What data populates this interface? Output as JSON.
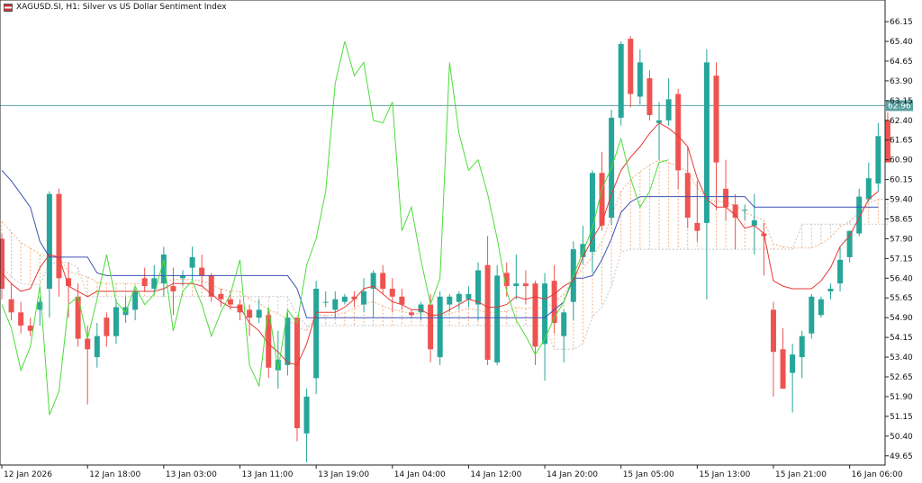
{
  "window": {
    "title": "XAGUSD.SI, H1:  Silver vs US Dollar Sentiment Index"
  },
  "current_price_label": "62.96",
  "colors": {
    "background": "#ffffff",
    "bull_candle": "#26a69a",
    "bear_candle": "#ef5350",
    "tenkan": "#e53935",
    "kijun": "#3f51b5",
    "chikou": "#4cdc3a",
    "cloud_bull": "#f4b183",
    "cloud_bear": "#c8c8c8",
    "current_line": "#5aa0a0",
    "axis_text": "#111111"
  },
  "icons": {
    "title_icon": "flag-icon"
  },
  "chart_data": {
    "type": "candlestick",
    "title": "XAGUSD.SI, H1:  Silver vs US Dollar Sentiment Index",
    "xlabel": "",
    "ylabel": "",
    "ylim": [
      49.3,
      66.7
    ],
    "grid": false,
    "y_ticks": [
      "66.15",
      "65.40",
      "64.65",
      "63.90",
      "63.15",
      "62.40",
      "61.65",
      "60.90",
      "60.15",
      "59.40",
      "58.65",
      "57.90",
      "57.15",
      "56.40",
      "55.65",
      "54.90",
      "54.15",
      "53.40",
      "52.65",
      "51.90",
      "51.15",
      "50.40",
      "49.65"
    ],
    "x_ticks": [
      "12 Jan 2026",
      "12 Jan 18:00",
      "13 Jan 03:00",
      "13 Jan 11:00",
      "13 Jan 19:00",
      "14 Jan 04:00",
      "14 Jan 12:00",
      "14 Jan 20:00",
      "15 Jan 05:00",
      "15 Jan 13:00",
      "15 Jan 21:00",
      "16 Jan 06:00"
    ],
    "x_tick_candle_index": [
      0,
      9,
      17,
      25,
      33,
      41,
      49,
      57,
      65,
      73,
      81,
      89
    ],
    "current_price": 62.96,
    "candles": [
      [
        57.9,
        58.1,
        55.6,
        56.0
      ],
      [
        55.6,
        56.2,
        54.8,
        55.1
      ],
      [
        55.1,
        55.5,
        54.3,
        54.6
      ],
      [
        54.6,
        54.9,
        54.2,
        54.4
      ],
      [
        55.2,
        55.7,
        54.6,
        55.5
      ],
      [
        56.0,
        59.7,
        54.9,
        59.6
      ],
      [
        59.6,
        59.8,
        55.7,
        56.4
      ],
      [
        56.4,
        57.0,
        54.9,
        56.1
      ],
      [
        55.7,
        56.2,
        53.8,
        54.1
      ],
      [
        54.1,
        54.6,
        51.6,
        53.7
      ],
      [
        53.4,
        54.7,
        53.0,
        54.2
      ],
      [
        54.9,
        55.1,
        53.8,
        54.2
      ],
      [
        54.2,
        55.6,
        53.9,
        55.3
      ],
      [
        55.0,
        55.7,
        54.7,
        55.3
      ],
      [
        55.2,
        56.0,
        54.8,
        55.9
      ],
      [
        56.4,
        56.8,
        55.9,
        56.1
      ],
      [
        56.0,
        56.9,
        55.8,
        56.4
      ],
      [
        56.2,
        57.6,
        55.7,
        57.3
      ],
      [
        56.1,
        56.8,
        55.0,
        55.9
      ],
      [
        56.4,
        56.7,
        56.1,
        56.5
      ],
      [
        56.8,
        57.6,
        56.3,
        57.2
      ],
      [
        56.8,
        57.3,
        56.1,
        56.5
      ],
      [
        56.5,
        56.6,
        55.5,
        55.7
      ],
      [
        55.8,
        56.0,
        55.3,
        55.6
      ],
      [
        55.6,
        55.9,
        55.2,
        55.4
      ],
      [
        55.4,
        55.6,
        54.8,
        55.1
      ],
      [
        55.2,
        55.4,
        54.2,
        54.9
      ],
      [
        54.9,
        55.6,
        54.7,
        55.2
      ],
      [
        55.0,
        55.2,
        52.6,
        53.0
      ],
      [
        52.9,
        54.4,
        52.2,
        53.3
      ],
      [
        53.1,
        55.1,
        52.7,
        54.9
      ],
      [
        54.9,
        54.9,
        50.2,
        50.7
      ],
      [
        50.5,
        52.2,
        49.4,
        51.9
      ],
      [
        52.6,
        56.3,
        52.0,
        56.0
      ],
      [
        55.5,
        55.9,
        55.3,
        55.5
      ],
      [
        55.2,
        55.9,
        54.9,
        55.6
      ],
      [
        55.5,
        55.8,
        55.4,
        55.7
      ],
      [
        55.7,
        55.9,
        55.3,
        55.6
      ],
      [
        55.4,
        56.4,
        55.1,
        55.9
      ],
      [
        56.0,
        56.7,
        54.9,
        56.6
      ],
      [
        56.6,
        56.9,
        55.8,
        56.0
      ],
      [
        56.0,
        56.4,
        55.1,
        55.7
      ],
      [
        55.7,
        56.0,
        55.2,
        55.4
      ],
      [
        55.1,
        55.2,
        54.9,
        55.0
      ],
      [
        55.1,
        55.5,
        54.8,
        55.4
      ],
      [
        55.4,
        55.8,
        53.2,
        53.7
      ],
      [
        53.4,
        55.9,
        53.1,
        55.7
      ],
      [
        55.4,
        55.8,
        55.1,
        55.7
      ],
      [
        55.5,
        55.9,
        55.2,
        55.8
      ],
      [
        55.6,
        56.1,
        55.3,
        55.8
      ],
      [
        55.4,
        57.0,
        54.8,
        56.7
      ],
      [
        56.9,
        58.0,
        53.1,
        53.3
      ],
      [
        53.2,
        56.9,
        53.1,
        56.5
      ],
      [
        56.6,
        57.0,
        55.7,
        56.1
      ],
      [
        56.1,
        57.3,
        55.6,
        56.2
      ],
      [
        56.2,
        56.7,
        55.4,
        56.1
      ],
      [
        56.2,
        56.3,
        53.1,
        53.8
      ],
      [
        53.9,
        56.6,
        52.5,
        56.2
      ],
      [
        56.3,
        56.9,
        54.3,
        54.7
      ],
      [
        54.2,
        55.2,
        53.2,
        55.1
      ],
      [
        55.5,
        57.8,
        54.8,
        57.5
      ],
      [
        57.2,
        58.4,
        56.9,
        57.7
      ],
      [
        57.4,
        60.5,
        56.6,
        60.4
      ],
      [
        60.4,
        61.2,
        58.2,
        58.4
      ],
      [
        58.7,
        62.8,
        58.4,
        62.5
      ],
      [
        62.5,
        65.4,
        62.2,
        65.3
      ],
      [
        65.5,
        65.6,
        62.9,
        63.4
      ],
      [
        63.3,
        65.1,
        63.0,
        64.6
      ],
      [
        64.0,
        64.3,
        62.4,
        62.6
      ],
      [
        62.3,
        63.1,
        60.9,
        62.4
      ],
      [
        62.4,
        64.0,
        62.2,
        63.2
      ],
      [
        63.4,
        63.6,
        59.8,
        60.5
      ],
      [
        60.4,
        61.4,
        58.3,
        58.7
      ],
      [
        58.5,
        60.1,
        57.8,
        58.2
      ],
      [
        58.5,
        65.1,
        55.6,
        64.6
      ],
      [
        64.1,
        64.6,
        59.0,
        60.8
      ],
      [
        59.8,
        60.9,
        58.6,
        59.1
      ],
      [
        59.2,
        59.6,
        57.5,
        58.7
      ],
      [
        59.0,
        59.2,
        58.6,
        59.0
      ],
      [
        58.4,
        59.6,
        57.3,
        58.6
      ],
      [
        58.1,
        58.5,
        56.5,
        58.0
      ],
      [
        55.2,
        55.5,
        51.9,
        53.6
      ],
      [
        53.7,
        54.5,
        52.2,
        52.2
      ],
      [
        52.8,
        53.9,
        51.3,
        53.5
      ],
      [
        53.4,
        54.4,
        52.6,
        54.2
      ],
      [
        54.3,
        55.8,
        54.1,
        55.7
      ],
      [
        55.0,
        55.7,
        54.9,
        55.6
      ],
      [
        55.9,
        56.2,
        55.6,
        56.0
      ],
      [
        56.2,
        57.6,
        55.9,
        57.1
      ],
      [
        57.2,
        58.2,
        57.0,
        58.2
      ],
      [
        58.1,
        59.8,
        58.0,
        59.5
      ],
      [
        59.4,
        60.8,
        59.3,
        60.2
      ],
      [
        60.0,
        62.3,
        59.7,
        61.8
      ],
      [
        62.4,
        62.7,
        60.8,
        60.8
      ]
    ],
    "tenkan": [
      56.6,
      56.2,
      55.9,
      56.0,
      56.8,
      57.3,
      57.2,
      56.1,
      55.9,
      55.7,
      55.9,
      55.9,
      55.9,
      55.9,
      55.9,
      55.9,
      55.9,
      56.0,
      56.2,
      56.2,
      56.2,
      56.1,
      55.8,
      55.5,
      55.3,
      55.3,
      54.7,
      54.4,
      53.9,
      53.6,
      53.2,
      53.1,
      53.9,
      55.1,
      55.1,
      55.1,
      55.3,
      55.6,
      56.0,
      56.1,
      55.8,
      55.5,
      55.4,
      55.2,
      55.2,
      55.0,
      55.0,
      55.2,
      55.4,
      55.6,
      55.5,
      55.3,
      55.3,
      55.4,
      55.7,
      55.6,
      55.7,
      55.6,
      55.8,
      56.1,
      56.3,
      57.2,
      57.9,
      58.5,
      59.6,
      60.5,
      61.0,
      61.4,
      61.9,
      62.3,
      62.1,
      61.8,
      61.4,
      60.2,
      59.4,
      59.1,
      59.1,
      58.8,
      58.3,
      58.4,
      58.1,
      56.3,
      56.1,
      56.0,
      56.0,
      56.0,
      56.3,
      56.8,
      57.6,
      58.0,
      58.7,
      59.4,
      59.7
    ],
    "kijun": [
      60.5,
      60.1,
      59.6,
      59.1,
      57.8,
      57.2,
      57.2,
      57.2,
      57.2,
      57.2,
      56.6,
      56.5,
      56.5,
      56.5,
      56.5,
      56.5,
      56.5,
      56.5,
      56.5,
      56.5,
      56.5,
      56.5,
      56.5,
      56.5,
      56.5,
      56.5,
      56.5,
      56.5,
      56.5,
      56.5,
      56.5,
      56.0,
      54.9,
      54.9,
      54.9,
      54.9,
      54.9,
      54.9,
      54.9,
      54.9,
      54.9,
      54.9,
      54.9,
      54.9,
      54.9,
      54.9,
      54.9,
      54.9,
      54.9,
      54.9,
      54.9,
      54.9,
      54.9,
      54.9,
      54.9,
      54.9,
      54.9,
      54.9,
      55.2,
      55.5,
      56.4,
      56.4,
      56.5,
      57.1,
      57.9,
      58.9,
      59.3,
      59.5,
      59.5,
      59.5,
      59.5,
      59.5,
      59.5,
      59.5,
      59.5,
      59.5,
      59.5,
      59.5,
      59.5,
      59.1,
      59.1,
      59.1,
      59.1,
      59.1,
      59.1,
      59.1,
      59.1,
      59.1,
      59.1,
      59.1,
      59.1,
      59.1,
      59.1
    ],
    "chikou": [
      55.4,
      54.5,
      52.9,
      53.8,
      56.1,
      51.2,
      52.1,
      55.4,
      55.7,
      54.1,
      55.6,
      57.3,
      55.5,
      55.1,
      56.1,
      55.4,
      55.8,
      57.1,
      54.4,
      55.9,
      56.3,
      55.4,
      54.2,
      55.1,
      55.8,
      57.1,
      53.1,
      52.3,
      55.3,
      52.9,
      55.2,
      54.7,
      56.9,
      57.9,
      59.7,
      63.8,
      65.4,
      64.1,
      64.6,
      62.4,
      62.3,
      63.1,
      58.2,
      59.1,
      57.1,
      55.4,
      56.4,
      64.6,
      61.9,
      60.5,
      60.9,
      59.6,
      57.9,
      55.9,
      54.8,
      54.2,
      53.5,
      54.1,
      54.9,
      55.5,
      56.5,
      57.4,
      58.3,
      59.8,
      60.6,
      61.7,
      60.2,
      59.1,
      59.7,
      60.8,
      60.9
    ]
  }
}
